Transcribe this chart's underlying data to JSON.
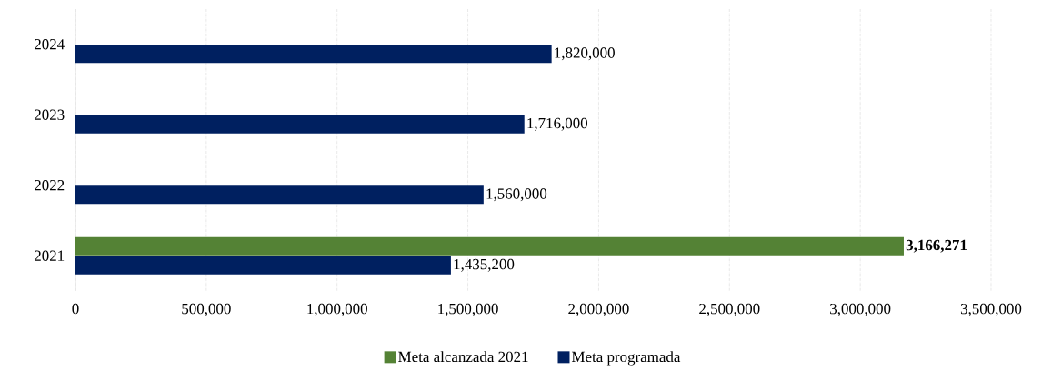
{
  "chart_data": {
    "type": "bar",
    "orientation": "horizontal",
    "categories": [
      "2024",
      "2023",
      "2022",
      "2021"
    ],
    "series": [
      {
        "name": "Meta alcanzada 2021",
        "color": "#548235",
        "values": [
          null,
          null,
          null,
          3166271
        ],
        "value_labels": [
          null,
          null,
          null,
          "**3,166,271**"
        ]
      },
      {
        "name": "Meta programada",
        "color": "#002060",
        "values": [
          1820000,
          1716000,
          1560000,
          1435200
        ],
        "value_labels": [
          "1,820,000",
          "1,716,000",
          "1,560,000",
          "1,435,200"
        ]
      }
    ],
    "xlim": [
      0,
      3500000
    ],
    "xticks": [
      0,
      {
        "value": 500000,
        "label": "500,000"
      },
      {
        "value": 1000000,
        "label": "1,000,000"
      },
      {
        "value": 1500000,
        "label": "1,500,000"
      },
      {
        "value": 2000000,
        "label": "2,000,000"
      },
      {
        "value": 2500000,
        "label": "2,500,000"
      },
      {
        "value": 3000000,
        "label": "3,000,000"
      },
      {
        "value": 3500000,
        "label": "3,500,000"
      }
    ],
    "grid": "x",
    "legend": "bottom"
  }
}
